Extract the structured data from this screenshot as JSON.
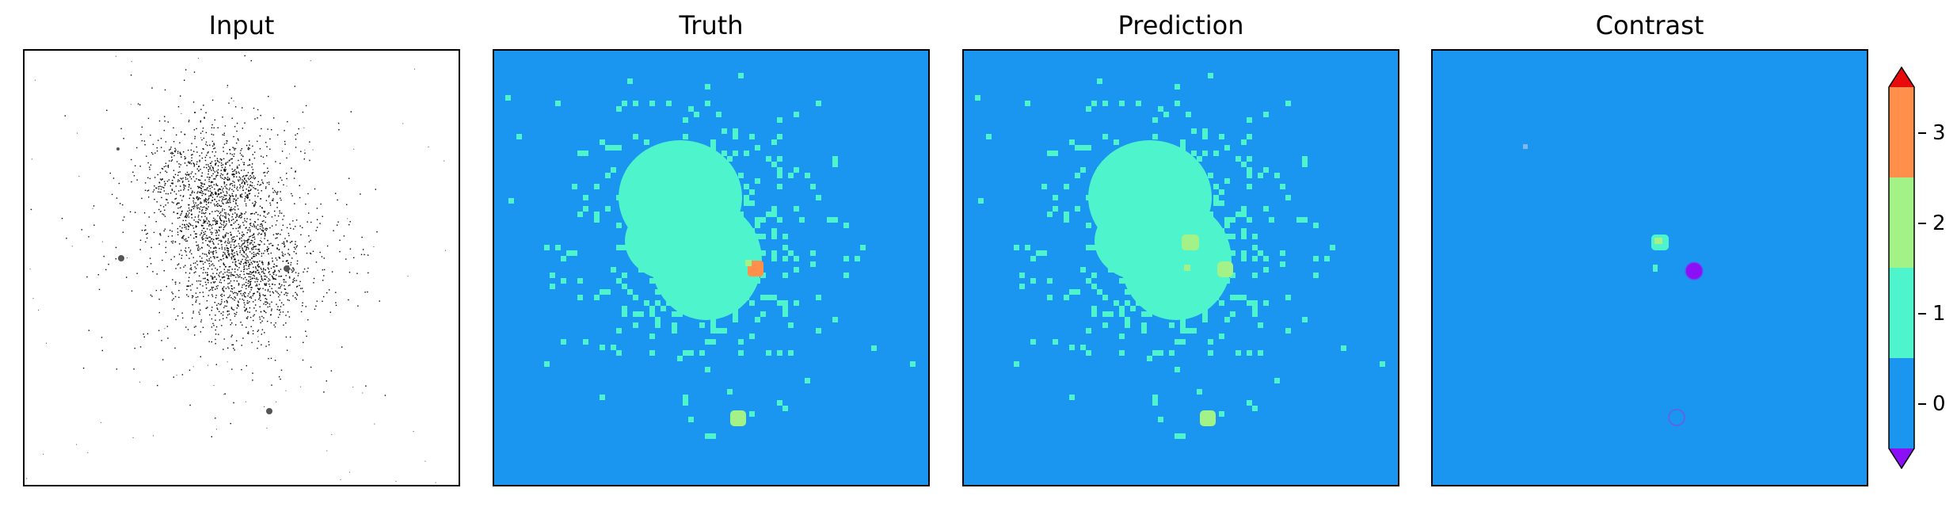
{
  "panels": [
    {
      "id": "input",
      "title": "Input"
    },
    {
      "id": "truth",
      "title": "Truth"
    },
    {
      "id": "prediction",
      "title": "Prediction"
    },
    {
      "id": "contrast",
      "title": "Contrast"
    }
  ],
  "colorbar": {
    "ticks": [
      "0",
      "1",
      "2",
      "3"
    ],
    "colors": {
      "class_0": "#1a95f0",
      "class_1": "#4ef5cc",
      "class_2": "#a3f287",
      "class_3": "#ff8f4a",
      "over": "#e80b0b",
      "under": "#8b10f5"
    }
  }
}
